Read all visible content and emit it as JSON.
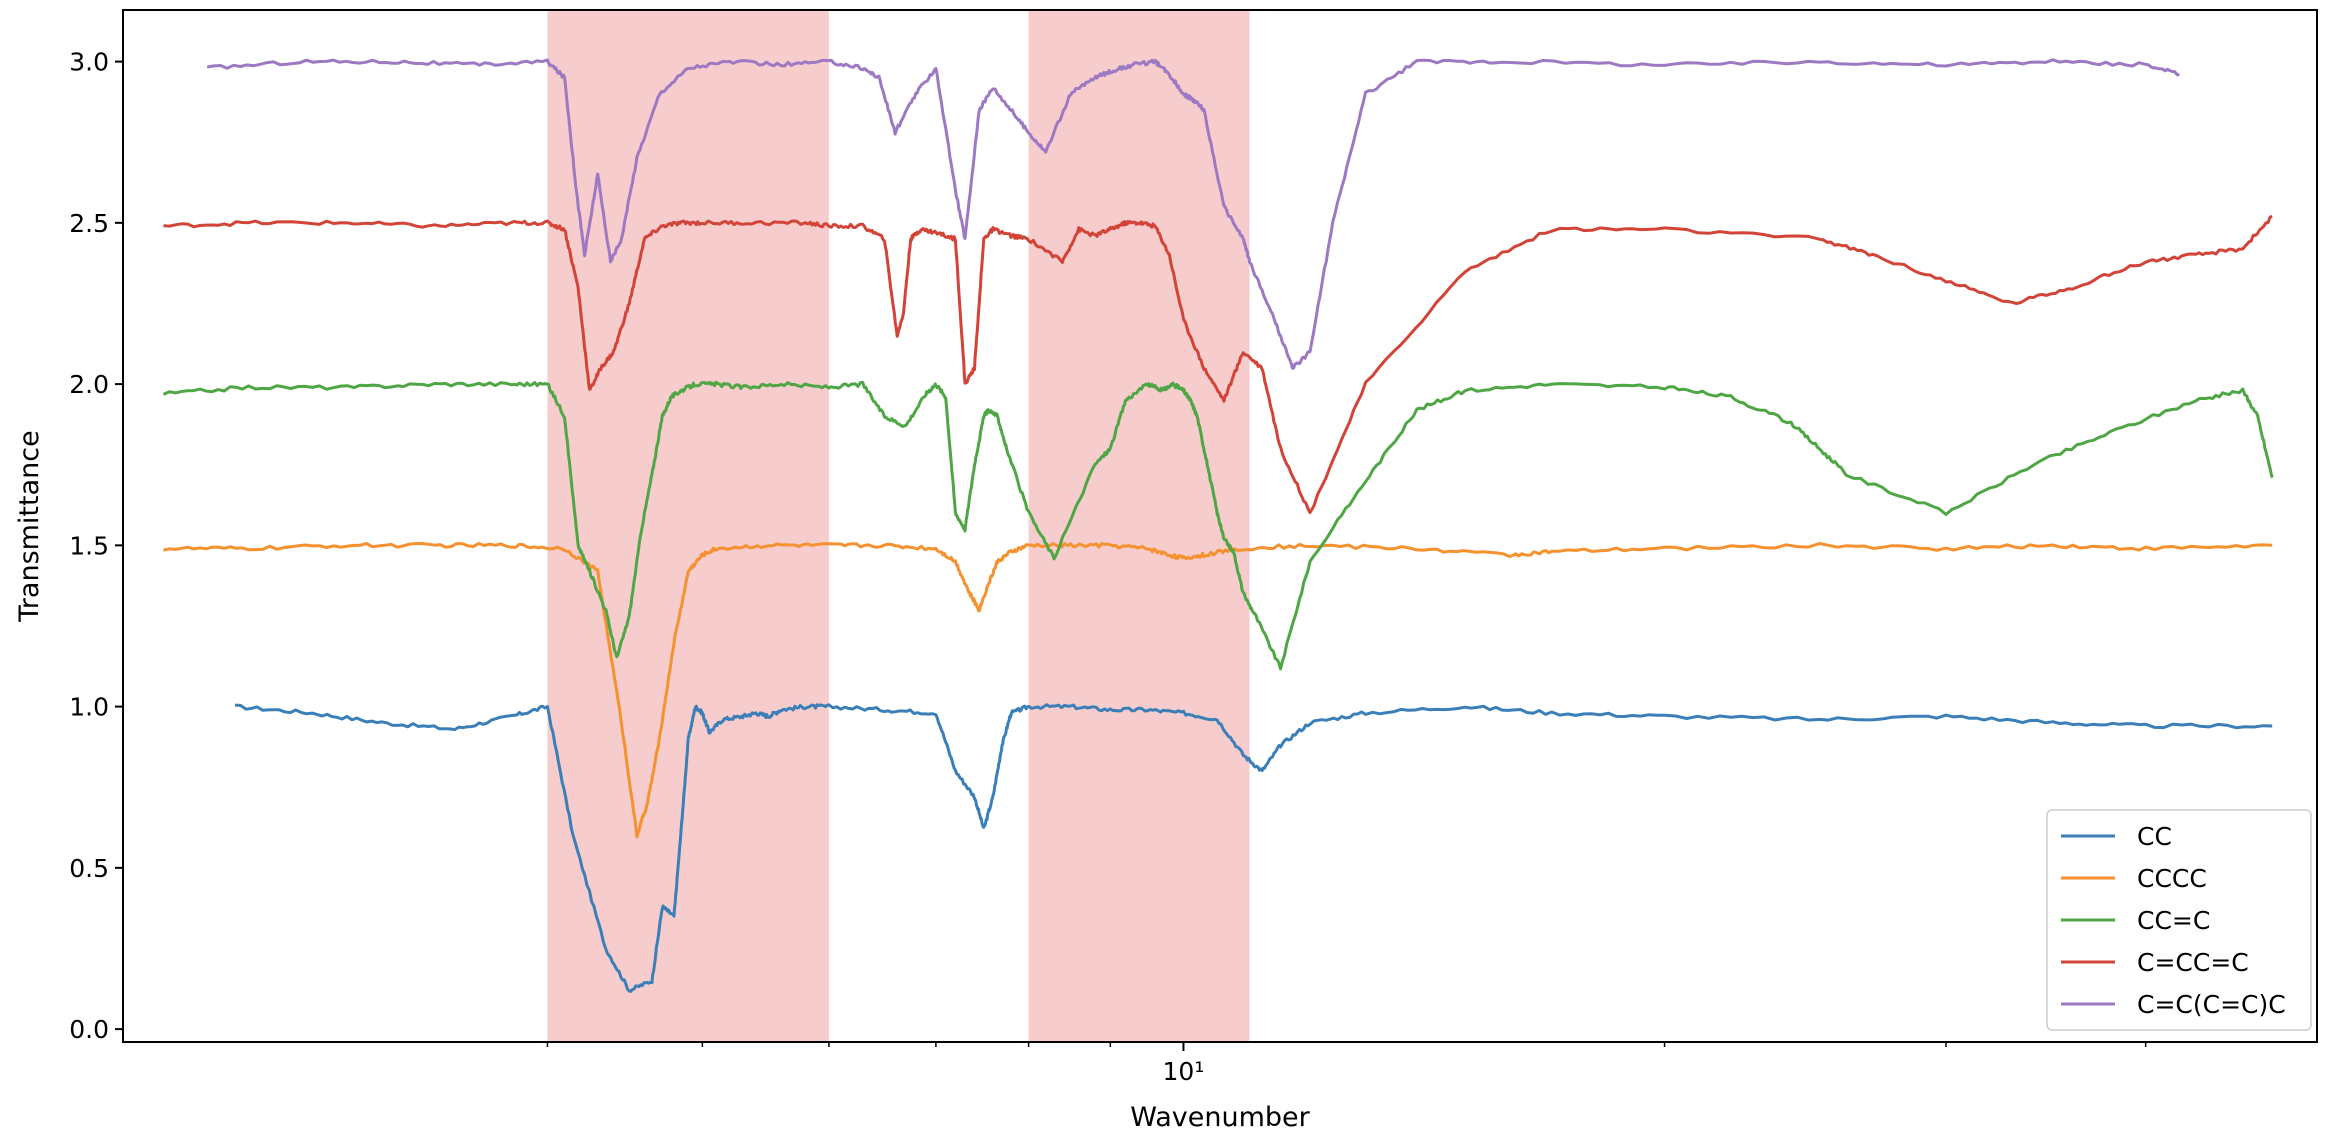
{
  "chart_data": {
    "type": "line",
    "title": "",
    "xlabel": "Wavenumber",
    "ylabel": "Transmittance",
    "xscale": "log",
    "xlim": [
      2.17,
      51.2
    ],
    "ylim": [
      -0.04,
      3.16
    ],
    "grid": false,
    "legend_position": "bottom-right",
    "x_ticks": [
      {
        "value": 10,
        "label": "10¹"
      }
    ],
    "x_minor_ticks": [
      4,
      5,
      6,
      7,
      8,
      9,
      20,
      30,
      40
    ],
    "y_ticks": [
      {
        "value": 0.0,
        "label": "0.0"
      },
      {
        "value": 0.5,
        "label": "0.5"
      },
      {
        "value": 1.0,
        "label": "1.0"
      },
      {
        "value": 1.5,
        "label": "1.5"
      },
      {
        "value": 2.0,
        "label": "2.0"
      },
      {
        "value": 2.5,
        "label": "2.5"
      },
      {
        "value": 3.0,
        "label": "3.0"
      }
    ],
    "highlight_regions": [
      {
        "x0": 4.0,
        "x1": 6.0,
        "color": "#f7cccc"
      },
      {
        "x0": 8.0,
        "x1": 11.0,
        "color": "#f7cccc"
      }
    ],
    "series": [
      {
        "name": "CC",
        "color": "#3a7fb7",
        "x": [
          2.55,
          2.85,
          3.15,
          3.5,
          3.8,
          4.0,
          4.15,
          4.35,
          4.5,
          4.65,
          4.72,
          4.8,
          4.85,
          4.9,
          4.95,
          5.0,
          5.05,
          5.15,
          5.3,
          5.4,
          5.5,
          5.6,
          5.8,
          6.0,
          6.5,
          7.0,
          7.2,
          7.4,
          7.5,
          7.6,
          7.7,
          7.8,
          8.0,
          8.5,
          9.0,
          9.5,
          10.0,
          10.5,
          10.9,
          11.2,
          11.5,
          12.0,
          13.0,
          15.0,
          17.0,
          20.0,
          25.0,
          30.0,
          35.0,
          40.0,
          48.0
        ],
        "y": [
          1.0,
          0.98,
          0.95,
          0.93,
          0.97,
          1.0,
          0.6,
          0.25,
          0.12,
          0.15,
          0.38,
          0.35,
          0.62,
          0.9,
          1.0,
          0.98,
          0.92,
          0.96,
          0.97,
          0.98,
          0.97,
          0.99,
          1.0,
          1.0,
          0.99,
          0.98,
          0.8,
          0.72,
          0.62,
          0.72,
          0.88,
          0.98,
          1.0,
          1.0,
          0.99,
          0.99,
          0.98,
          0.96,
          0.85,
          0.8,
          0.88,
          0.95,
          0.98,
          1.0,
          0.98,
          0.97,
          0.96,
          0.97,
          0.95,
          0.94,
          0.94
        ]
      },
      {
        "name": "CCCC",
        "color": "#f5912e",
        "x": [
          2.3,
          2.6,
          3.0,
          3.4,
          3.8,
          4.1,
          4.3,
          4.45,
          4.55,
          4.62,
          4.7,
          4.8,
          4.9,
          5.0,
          5.1,
          5.5,
          6.0,
          6.5,
          7.0,
          7.2,
          7.35,
          7.45,
          7.55,
          7.65,
          7.8,
          8.0,
          8.5,
          9.0,
          9.5,
          9.8,
          10.0,
          10.3,
          10.8,
          12.0,
          14.0,
          16.0,
          17.0,
          20.0,
          25.0,
          30.0,
          35.0,
          40.0,
          48.0
        ],
        "y": [
          1.49,
          1.49,
          1.5,
          1.5,
          1.5,
          1.49,
          1.42,
          0.95,
          0.6,
          0.7,
          0.9,
          1.2,
          1.42,
          1.47,
          1.49,
          1.5,
          1.5,
          1.5,
          1.49,
          1.45,
          1.35,
          1.3,
          1.38,
          1.45,
          1.48,
          1.5,
          1.5,
          1.5,
          1.49,
          1.47,
          1.46,
          1.47,
          1.49,
          1.5,
          1.49,
          1.47,
          1.48,
          1.49,
          1.5,
          1.49,
          1.5,
          1.49,
          1.5
        ]
      },
      {
        "name": "CC=C",
        "color": "#4ea645",
        "x": [
          2.3,
          2.6,
          3.0,
          3.4,
          3.8,
          4.0,
          4.1,
          4.18,
          4.25,
          4.35,
          4.42,
          4.5,
          4.58,
          4.65,
          4.72,
          4.78,
          4.85,
          4.95,
          5.1,
          5.3,
          5.6,
          6.0,
          6.3,
          6.5,
          6.7,
          6.9,
          7.0,
          7.1,
          7.2,
          7.3,
          7.4,
          7.5,
          7.55,
          7.65,
          7.75,
          8.0,
          8.3,
          8.8,
          9.0,
          9.2,
          9.5,
          9.7,
          9.85,
          10.0,
          10.1,
          10.2,
          10.35,
          10.5,
          10.6,
          10.75,
          10.9,
          11.1,
          11.5,
          12.0,
          13.0,
          14.0,
          15.0,
          17.0,
          20.0,
          22.0,
          24.0,
          25.0,
          26.0,
          30.0,
          34.0,
          38.0,
          43.0,
          46.0,
          47.0,
          48.0
        ],
        "y": [
          1.97,
          1.99,
          1.99,
          2.0,
          2.0,
          2.0,
          1.9,
          1.5,
          1.42,
          1.3,
          1.15,
          1.28,
          1.55,
          1.72,
          1.9,
          1.96,
          1.98,
          2.0,
          2.0,
          1.99,
          2.0,
          1.99,
          2.0,
          1.9,
          1.87,
          1.97,
          2.0,
          1.96,
          1.6,
          1.55,
          1.75,
          1.9,
          1.92,
          1.9,
          1.8,
          1.6,
          1.46,
          1.75,
          1.8,
          1.95,
          2.0,
          1.98,
          2.0,
          1.98,
          1.95,
          1.9,
          1.75,
          1.6,
          1.52,
          1.48,
          1.35,
          1.28,
          1.12,
          1.45,
          1.7,
          1.92,
          1.98,
          2.0,
          1.99,
          1.96,
          1.88,
          1.8,
          1.72,
          1.6,
          1.75,
          1.85,
          1.95,
          1.98,
          1.9,
          1.71
        ]
      },
      {
        "name": "C=CC=C",
        "color": "#d24438",
        "x": [
          2.3,
          2.6,
          3.0,
          3.4,
          3.8,
          4.0,
          4.1,
          4.18,
          4.25,
          4.32,
          4.4,
          4.5,
          4.6,
          4.72,
          4.85,
          5.0,
          5.3,
          5.8,
          6.0,
          6.3,
          6.5,
          6.62,
          6.68,
          6.75,
          6.85,
          7.0,
          7.2,
          7.3,
          7.4,
          7.5,
          7.6,
          7.8,
          8.0,
          8.4,
          8.6,
          8.8,
          9.0,
          9.2,
          9.4,
          9.6,
          9.8,
          10.0,
          10.3,
          10.6,
          10.9,
          11.2,
          11.5,
          12.0,
          13.0,
          15.0,
          17.0,
          20.0,
          25.0,
          27.0,
          30.0,
          33.0,
          36.0,
          40.0,
          43.0,
          46.0,
          48.0
        ],
        "y": [
          2.49,
          2.5,
          2.5,
          2.49,
          2.5,
          2.5,
          2.48,
          2.3,
          1.98,
          2.05,
          2.1,
          2.25,
          2.45,
          2.49,
          2.5,
          2.5,
          2.5,
          2.5,
          2.49,
          2.49,
          2.45,
          2.15,
          2.22,
          2.45,
          2.48,
          2.47,
          2.45,
          2.0,
          2.05,
          2.45,
          2.48,
          2.46,
          2.45,
          2.38,
          2.48,
          2.46,
          2.48,
          2.5,
          2.5,
          2.49,
          2.4,
          2.2,
          2.05,
          1.95,
          2.1,
          2.05,
          1.8,
          1.6,
          2.0,
          2.35,
          2.48,
          2.48,
          2.45,
          2.4,
          2.32,
          2.25,
          2.3,
          2.38,
          2.4,
          2.42,
          2.52
        ]
      },
      {
        "name": "C=C(C=C)C",
        "color": "#9c79c2",
        "x": [
          2.45,
          2.8,
          3.2,
          3.6,
          4.0,
          4.1,
          4.17,
          4.22,
          4.3,
          4.38,
          4.45,
          4.55,
          4.7,
          4.9,
          5.2,
          5.6,
          6.0,
          6.3,
          6.45,
          6.6,
          6.8,
          7.0,
          7.2,
          7.3,
          7.45,
          7.6,
          7.8,
          8.0,
          8.2,
          8.5,
          8.8,
          9.0,
          9.3,
          9.6,
          9.8,
          10.0,
          10.15,
          10.3,
          10.6,
          10.9,
          11.0,
          11.4,
          11.7,
          12.0,
          12.4,
          13.0,
          14.0,
          16.0,
          20.0,
          25.0,
          30.0,
          35.0,
          40.0,
          42.0
        ],
        "y": [
          2.98,
          3.0,
          3.0,
          2.99,
          3.0,
          2.95,
          2.6,
          2.4,
          2.65,
          2.38,
          2.45,
          2.7,
          2.9,
          2.98,
          3.0,
          2.99,
          3.0,
          2.98,
          2.95,
          2.78,
          2.9,
          2.98,
          2.6,
          2.45,
          2.85,
          2.92,
          2.85,
          2.78,
          2.72,
          2.9,
          2.95,
          2.97,
          2.99,
          3.0,
          2.96,
          2.9,
          2.88,
          2.85,
          2.55,
          2.45,
          2.38,
          2.2,
          2.05,
          2.1,
          2.5,
          2.9,
          3.0,
          3.0,
          2.99,
          3.0,
          2.99,
          3.0,
          2.99,
          2.96
        ]
      }
    ]
  }
}
